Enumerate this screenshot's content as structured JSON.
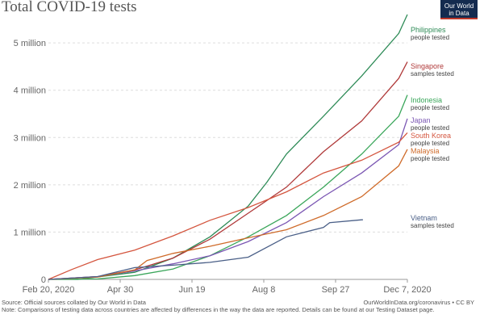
{
  "header": {
    "title": "Total COVID-19 tests",
    "logo_line1": "Our World",
    "logo_line2": "in Data"
  },
  "footer": {
    "source": "Source: Official sources collated by Our World in Data",
    "note": "Note: Comparisons of testing data across countries are affected by differences in the way the data are reported. Details can be found at our Testing Dataset page.",
    "credit": "OurWorldInData.org/coronavirus • CC BY"
  },
  "chart_data": {
    "type": "line",
    "title": "Total COVID-19 tests",
    "xlabel": "",
    "ylabel": "",
    "x_ticks": [
      "Feb 20, 2020",
      "Apr 30",
      "Jun 19",
      "Aug 8",
      "Sep 27",
      "Dec 7, 2020"
    ],
    "y_ticks": [
      "0",
      "1 million",
      "2 million",
      "3 million",
      "4 million",
      "5 million"
    ],
    "x_range": [
      "2020-02-20",
      "2020-12-07"
    ],
    "ylim": [
      0,
      5600000
    ],
    "grid": "horizontal dashed",
    "legend": "line-end labels",
    "series": [
      {
        "name": "Philippines",
        "metric": "people tested",
        "color": "#2e8b57",
        "points": [
          [
            "2020-02-20",
            0
          ],
          [
            "2020-03-15",
            0
          ],
          [
            "2020-04-30",
            150000
          ],
          [
            "2020-05-31",
            450000
          ],
          [
            "2020-06-30",
            900000
          ],
          [
            "2020-07-31",
            1550000
          ],
          [
            "2020-08-15",
            2050000
          ],
          [
            "2020-08-31",
            2650000
          ],
          [
            "2020-09-30",
            3450000
          ],
          [
            "2020-10-31",
            4300000
          ],
          [
            "2020-11-30",
            5200000
          ],
          [
            "2020-12-07",
            5600000
          ]
        ]
      },
      {
        "name": "Singapore",
        "metric": "samples tested",
        "color": "#b03a3a",
        "points": [
          [
            "2020-02-20",
            0
          ],
          [
            "2020-03-31",
            60000
          ],
          [
            "2020-04-30",
            200000
          ],
          [
            "2020-05-31",
            450000
          ],
          [
            "2020-06-30",
            850000
          ],
          [
            "2020-07-31",
            1400000
          ],
          [
            "2020-08-31",
            1950000
          ],
          [
            "2020-09-30",
            2700000
          ],
          [
            "2020-10-31",
            3350000
          ],
          [
            "2020-11-30",
            4250000
          ],
          [
            "2020-12-07",
            4600000
          ]
        ]
      },
      {
        "name": "Indonesia",
        "metric": "people tested",
        "color": "#3aa65a",
        "points": [
          [
            "2020-02-20",
            0
          ],
          [
            "2020-03-31",
            10000
          ],
          [
            "2020-04-30",
            80000
          ],
          [
            "2020-05-31",
            220000
          ],
          [
            "2020-06-30",
            500000
          ],
          [
            "2020-07-31",
            900000
          ],
          [
            "2020-08-31",
            1350000
          ],
          [
            "2020-09-30",
            1950000
          ],
          [
            "2020-10-31",
            2650000
          ],
          [
            "2020-11-30",
            3450000
          ],
          [
            "2020-12-07",
            3900000
          ]
        ]
      },
      {
        "name": "Japan",
        "metric": "people tested",
        "color": "#7b57b3",
        "points": [
          [
            "2020-02-20",
            0
          ],
          [
            "2020-03-31",
            60000
          ],
          [
            "2020-04-30",
            180000
          ],
          [
            "2020-05-31",
            330000
          ],
          [
            "2020-06-30",
            500000
          ],
          [
            "2020-07-31",
            800000
          ],
          [
            "2020-08-31",
            1200000
          ],
          [
            "2020-09-30",
            1750000
          ],
          [
            "2020-10-31",
            2250000
          ],
          [
            "2020-11-30",
            2850000
          ],
          [
            "2020-12-07",
            3400000
          ]
        ]
      },
      {
        "name": "South Korea",
        "metric": "people tested",
        "color": "#d4563f",
        "points": [
          [
            "2020-02-20",
            0
          ],
          [
            "2020-03-10",
            210000
          ],
          [
            "2020-03-31",
            420000
          ],
          [
            "2020-04-30",
            620000
          ],
          [
            "2020-05-31",
            920000
          ],
          [
            "2020-06-30",
            1250000
          ],
          [
            "2020-07-31",
            1520000
          ],
          [
            "2020-08-31",
            1850000
          ],
          [
            "2020-09-30",
            2250000
          ],
          [
            "2020-10-31",
            2520000
          ],
          [
            "2020-11-30",
            2900000
          ],
          [
            "2020-12-07",
            3100000
          ]
        ]
      },
      {
        "name": "Malaysia",
        "metric": "people tested",
        "color": "#cf6b2a",
        "points": [
          [
            "2020-02-20",
            0
          ],
          [
            "2020-03-31",
            50000
          ],
          [
            "2020-04-30",
            200000
          ],
          [
            "2020-05-10",
            400000
          ],
          [
            "2020-05-31",
            550000
          ],
          [
            "2020-06-30",
            700000
          ],
          [
            "2020-07-31",
            880000
          ],
          [
            "2020-08-31",
            1050000
          ],
          [
            "2020-09-30",
            1350000
          ],
          [
            "2020-10-31",
            1750000
          ],
          [
            "2020-11-30",
            2400000
          ],
          [
            "2020-12-07",
            2750000
          ]
        ]
      },
      {
        "name": "Vietnam",
        "metric": "samples tested",
        "color": "#4a5f87",
        "points": [
          [
            "2020-02-20",
            0
          ],
          [
            "2020-03-31",
            60000
          ],
          [
            "2020-04-30",
            250000
          ],
          [
            "2020-05-31",
            300000
          ],
          [
            "2020-06-30",
            360000
          ],
          [
            "2020-07-31",
            470000
          ],
          [
            "2020-08-31",
            900000
          ],
          [
            "2020-09-30",
            1100000
          ],
          [
            "2020-10-05",
            1200000
          ],
          [
            "2020-10-31",
            1260000
          ],
          [
            "2020-11-01",
            1260000
          ]
        ]
      }
    ]
  }
}
